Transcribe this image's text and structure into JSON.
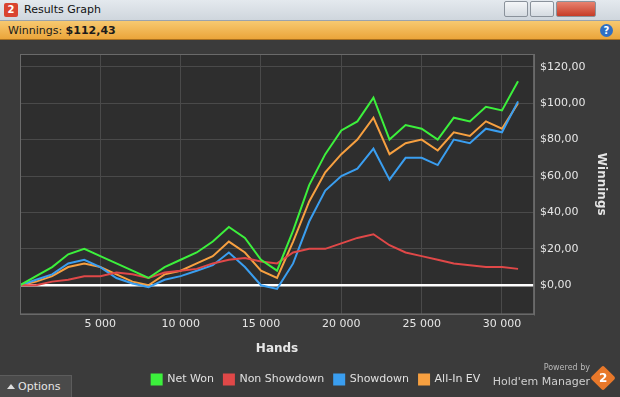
{
  "window": {
    "title": "Results Graph",
    "icon": "2",
    "header": {
      "label": "Winnings:",
      "value": "$112,43"
    },
    "help": "?",
    "options_button": "Options",
    "brand": {
      "line1": "Powered by",
      "name": "Hold'em Manager",
      "logo": "2"
    }
  },
  "chart_data": {
    "type": "line",
    "x_label": "Hands",
    "y_label": "Winnings",
    "x": [
      0,
      1000,
      2000,
      3000,
      4000,
      5000,
      6000,
      7000,
      8000,
      9000,
      10000,
      11000,
      12000,
      13000,
      14000,
      15000,
      16000,
      17000,
      18000,
      19000,
      20000,
      21000,
      22000,
      23000,
      24000,
      25000,
      26000,
      27000,
      28000,
      29000,
      30000,
      31000
    ],
    "series": [
      {
        "name": "Net Won",
        "color": "#3cf03c",
        "values": [
          0,
          5,
          10,
          17,
          20,
          16,
          12,
          8,
          4,
          10,
          14,
          18,
          24,
          32,
          26,
          14,
          8,
          30,
          55,
          72,
          85,
          90,
          103,
          80,
          88,
          86,
          80,
          92,
          90,
          98,
          96,
          112
        ]
      },
      {
        "name": "Non Showdown",
        "color": "#e04848",
        "values": [
          0,
          0,
          2,
          3,
          5,
          5,
          7,
          6,
          4,
          7,
          8,
          9,
          12,
          14,
          15,
          13,
          12,
          18,
          20,
          20,
          23,
          26,
          28,
          22,
          18,
          16,
          14,
          12,
          11,
          10,
          10,
          9
        ]
      },
      {
        "name": "Showdown",
        "color": "#3a9ef0",
        "values": [
          0,
          3,
          6,
          12,
          14,
          10,
          4,
          1,
          -1,
          3,
          5,
          8,
          11,
          18,
          10,
          0,
          -2,
          12,
          35,
          52,
          60,
          64,
          75,
          58,
          70,
          70,
          66,
          80,
          78,
          86,
          84,
          101
        ]
      },
      {
        "name": "All-In EV",
        "color": "#f7a040",
        "values": [
          0,
          2,
          5,
          10,
          12,
          10,
          6,
          2,
          0,
          6,
          8,
          12,
          16,
          24,
          18,
          8,
          4,
          24,
          46,
          62,
          72,
          80,
          92,
          72,
          78,
          80,
          74,
          84,
          82,
          90,
          86,
          100
        ]
      }
    ],
    "xlim": [
      0,
      32000
    ],
    "xticks": [
      {
        "value": 5000,
        "label": "5 000"
      },
      {
        "value": 10000,
        "label": "10 000"
      },
      {
        "value": 15000,
        "label": "15 000"
      },
      {
        "value": 20000,
        "label": "20 000"
      },
      {
        "value": 25000,
        "label": "25 000"
      },
      {
        "value": 30000,
        "label": "30 000"
      }
    ],
    "ylim": [
      -16,
      127
    ],
    "yticks": [
      {
        "value": 0,
        "label": "$0,00"
      },
      {
        "value": 20,
        "label": "$20,00"
      },
      {
        "value": 40,
        "label": "$40,00"
      },
      {
        "value": 60,
        "label": "$60,00"
      },
      {
        "value": 80,
        "label": "$80,00"
      },
      {
        "value": 100,
        "label": "$100,00"
      },
      {
        "value": 120,
        "label": "$120,00"
      }
    ],
    "grid": true,
    "legend": "bottom"
  }
}
